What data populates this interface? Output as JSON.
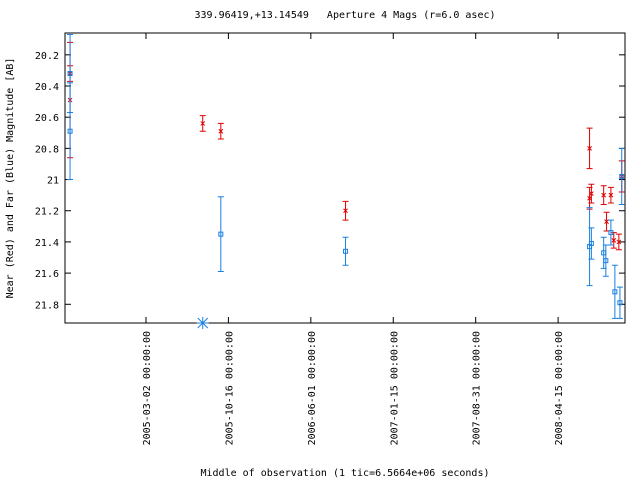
{
  "chart_data": {
    "type": "scatter",
    "title": "339.96419,+13.14549   Aperture 4 Mags (r=6.0 asec)",
    "x_label": "Middle of observation (1 tic=6.5664e+06 seconds)",
    "y_label": "Near (Red) and Far (Blue) Magnitude [AB]",
    "xlim": [
      "2004-07-21",
      "2008-10-17"
    ],
    "xticks": [
      "2005-03-02 00:00:00",
      "2005-10-16 00:00:00",
      "2006-06-01 00:00:00",
      "2007-01-15 00:00:00",
      "2007-08-31 00:00:00",
      "2008-04-15 00:00:00"
    ],
    "ylim": [
      20.06,
      21.92
    ],
    "y_inverted": true,
    "yticks": [
      20.2,
      20.4,
      20.6,
      20.8,
      21,
      21.2,
      21.4,
      21.6,
      21.8
    ],
    "series": [
      {
        "color": "#e00000",
        "marker": "cross",
        "x": [
          "2004-08-04",
          "2004-08-04",
          "2005-08-06",
          "2005-09-25",
          "2006-09-05",
          "2008-07-11",
          "2008-07-11",
          "2008-07-16",
          "2008-08-19",
          "2008-08-27",
          "2008-09-08",
          "2008-09-16",
          "2008-09-30",
          "2008-10-08"
        ],
        "values": [
          20.49,
          20.32,
          20.64,
          20.69,
          21.2,
          20.8,
          21.12,
          21.09,
          21.1,
          21.27,
          21.1,
          21.39,
          21.4,
          20.98
        ],
        "errors": [
          0.37,
          0.05,
          0.05,
          0.05,
          0.06,
          0.13,
          0.07,
          0.06,
          0.06,
          0.06,
          0.05,
          0.05,
          0.05,
          0.1
        ]
      },
      {
        "color": "#1a80e0",
        "marker": "square",
        "x": [
          "2004-08-04",
          "2004-08-04",
          "2005-09-25",
          "2006-09-05",
          "2008-07-11",
          "2008-07-16",
          "2008-08-19",
          "2008-08-25",
          "2008-09-08",
          "2008-09-19",
          "2008-10-03",
          "2008-10-08"
        ],
        "values": [
          20.32,
          20.69,
          21.35,
          21.46,
          21.43,
          21.41,
          21.47,
          21.52,
          21.34,
          21.72,
          21.79,
          20.98
        ],
        "errors": [
          0.25,
          0.31,
          0.24,
          0.09,
          0.25,
          0.1,
          0.1,
          0.1,
          0.08,
          0.17,
          0.1,
          0.18
        ]
      },
      {
        "color": "#1a80e0",
        "marker": "asterisk",
        "x": [
          "2005-08-06"
        ],
        "values": [
          21.92
        ]
      }
    ]
  }
}
